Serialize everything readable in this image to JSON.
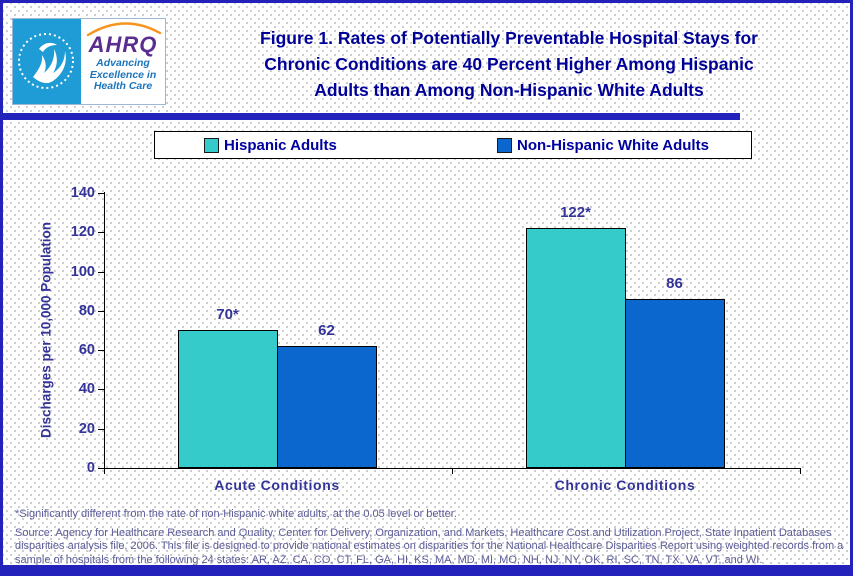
{
  "header": {
    "title_lines": [
      "Figure 1. Rates of Potentially Preventable Hospital Stays for",
      "Chronic Conditions are 40 Percent Higher Among Hispanic",
      "Adults than Among Non-Hispanic White Adults"
    ],
    "logo": {
      "ahrq_acronym": "AHRQ",
      "tagline_lines": [
        "Advancing",
        "Excellence in",
        "Health Care"
      ]
    }
  },
  "legend": {
    "items": [
      {
        "label": "Hispanic Adults",
        "color": "#35CBCB"
      },
      {
        "label": "Non-Hispanic White Adults",
        "color": "#0B67CD"
      }
    ]
  },
  "chart_data": {
    "type": "bar",
    "title": "Figure 1. Rates of Potentially Preventable Hospital Stays for Chronic Conditions are 40 Percent Higher Among Hispanic Adults than Among Non-Hispanic White Adults",
    "categories": [
      "Acute Conditions",
      "Chronic Conditions"
    ],
    "series": [
      {
        "name": "Hispanic Adults",
        "color": "#35CBCB",
        "values": [
          70,
          122
        ],
        "data_labels": [
          "70*",
          "122*"
        ]
      },
      {
        "name": "Non-Hispanic White Adults",
        "color": "#0B67CD",
        "values": [
          62,
          86
        ],
        "data_labels": [
          "62",
          "86"
        ]
      }
    ],
    "xlabel": "",
    "ylabel": "Discharges per 10,000 Population",
    "ylim": [
      0,
      140
    ],
    "yticks": [
      0,
      20,
      40,
      60,
      80,
      100,
      120,
      140
    ],
    "grid": false,
    "legend_position": "top"
  },
  "footnotes": {
    "significance": "*Significantly different from the rate of non-Hispanic white adults, at the 0.05 level or better.",
    "source": "Source: Agency for Healthcare Research and Quality, Center for Delivery, Organization, and Markets, Healthcare Cost and Utilization Project, State Inpatient Databases disparities analysis file, 2006. This file is designed to provide national estimates on disparities for the National Healthcare Disparities Report using weighted records from a sample of hospitals from the following 24 states: AR, AZ, CA, CO, CT, FL, GA, HI, KS, MA, MD, MI, MO, NH, NJ, NY, OK, RI, SC, TN, TX, VA, VT, and WI."
  },
  "colors": {
    "frame_blue": "#2323BC",
    "title_navy": "#000099",
    "chart_text_navy": "#333399",
    "footnote_gray_blue": "#5c5c99",
    "hispanic_teal": "#35CBCB",
    "nonhispanic_blue": "#0B67CD"
  }
}
